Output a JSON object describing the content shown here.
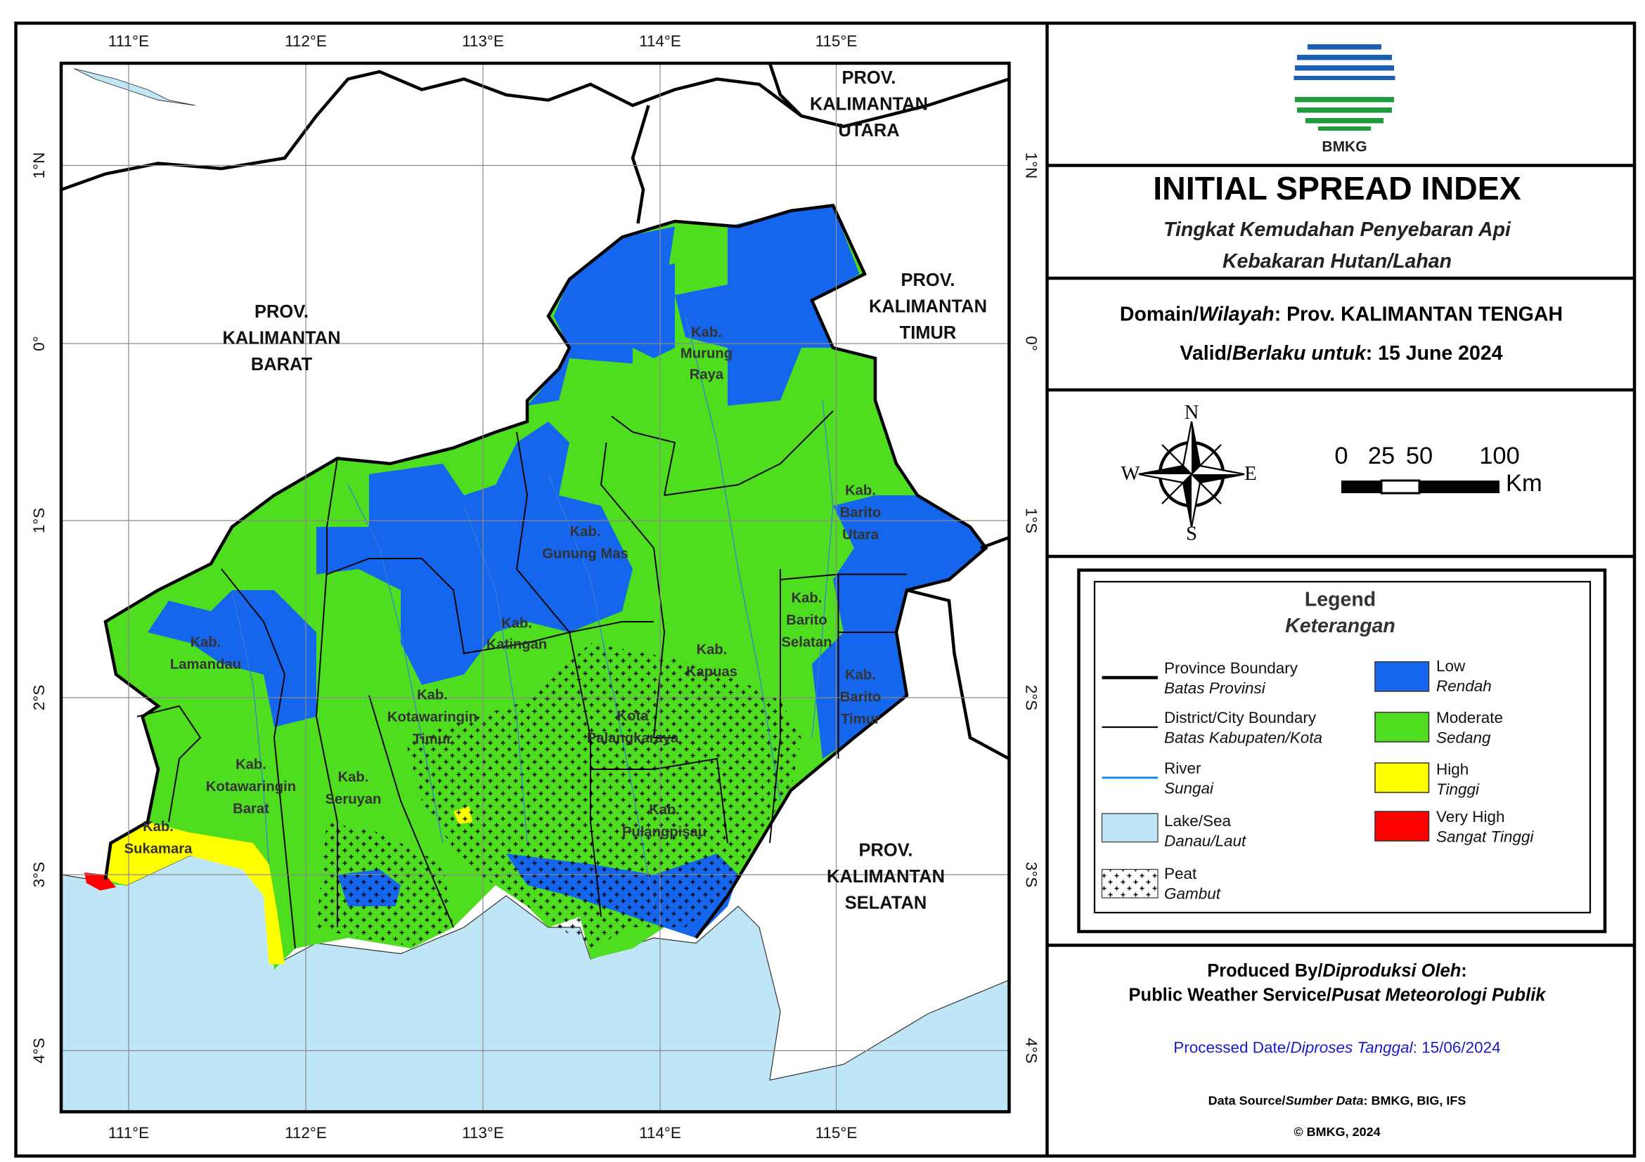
{
  "logo": {
    "text": "BMKG"
  },
  "title": "INITIAL SPREAD INDEX",
  "subtitle": [
    "Tingkat Kemudahan Penyebaran Api",
    "Kebakaran Hutan/Lahan"
  ],
  "domain": {
    "label": "Domain/",
    "label_alt": "Wilayah",
    "value": ": Prov. KALIMANTAN TENGAH"
  },
  "valid": {
    "label": "Valid/",
    "label_alt": "Berlaku untuk",
    "value": ": 15 June 2024"
  },
  "compass": {
    "n": "N",
    "s": "S",
    "e": "E",
    "w": "W"
  },
  "scale_bar": {
    "ticks": [
      0,
      25,
      50,
      100
    ],
    "unit": "Km"
  },
  "legend": {
    "title": "Legend",
    "subtitle": "Keterangan",
    "items": [
      {
        "name": "Province Boundary",
        "alt": "Batas Provinsi"
      },
      {
        "name": "District/City Boundary",
        "alt": "Batas Kabupaten/Kota"
      },
      {
        "name": "River",
        "alt": "Sungai"
      },
      {
        "name": "Lake/Sea",
        "alt": "Danau/Laut"
      },
      {
        "name": "Peat",
        "alt": "Gambut"
      },
      {
        "name": "Low",
        "alt": "Rendah"
      },
      {
        "name": "Moderate",
        "alt": "Sedang"
      },
      {
        "name": "High",
        "alt": "Tinggi"
      },
      {
        "name": "Very High",
        "alt": "Sangat Tinggi"
      }
    ]
  },
  "footer": {
    "produced": {
      "label": "Produced By/",
      "label_alt": "Diproduksi Oleh",
      "colon": ":"
    },
    "producer": {
      "name": "Public Weather Service/",
      "name_alt": "Pusat Meteorologi Publik"
    },
    "processed": {
      "label": "Processed Date/",
      "label_alt": "Diproses Tanggal",
      "value": ": 15/06/2024"
    },
    "source": {
      "label": "Data Source/",
      "label_alt": "Sumber Data",
      "value": ": BMKG, BIG, IFS"
    },
    "copyright": "© BMKG, 2024"
  },
  "map": {
    "lon_labels": [
      "111°E",
      "112°E",
      "113°E",
      "114°E",
      "115°E"
    ],
    "lat_labels": [
      "1°N",
      "0°",
      "1°S",
      "2°S",
      "3°S",
      "4°S"
    ],
    "labels": [
      [
        "PROV.",
        "KALIMANTAN",
        "BARAT"
      ],
      [
        "PROV.",
        "KALIMANTAN",
        "UTARA"
      ],
      [
        "PROV.",
        "KALIMANTAN",
        "TIMUR"
      ],
      [
        "PROV.",
        "KALIMANTAN",
        "SELATAN"
      ],
      [
        "Kab.",
        "Murung",
        "Raya"
      ],
      [
        "Kab.",
        "Gunung Mas"
      ],
      [
        "Kab.",
        "Barito",
        "Utara"
      ],
      [
        "Kab.",
        "Barito",
        "Selatan"
      ],
      [
        "Kab.",
        "Lamandau"
      ],
      [
        "Kab.",
        "Katingan"
      ],
      [
        "Kab.",
        "Kapuas"
      ],
      [
        "Kab.",
        "Barito",
        "Timur"
      ],
      [
        "Kab.",
        "Kotawaringin",
        "Timur"
      ],
      [
        "Kota",
        "Palangkaraya"
      ],
      [
        "Kab.",
        "Kotawaringin",
        "Barat"
      ],
      [
        "Kab.",
        "Seruyan"
      ],
      [
        "Kab.",
        "Pulangpisau"
      ],
      [
        "Kab.",
        "Sukamara"
      ]
    ]
  }
}
